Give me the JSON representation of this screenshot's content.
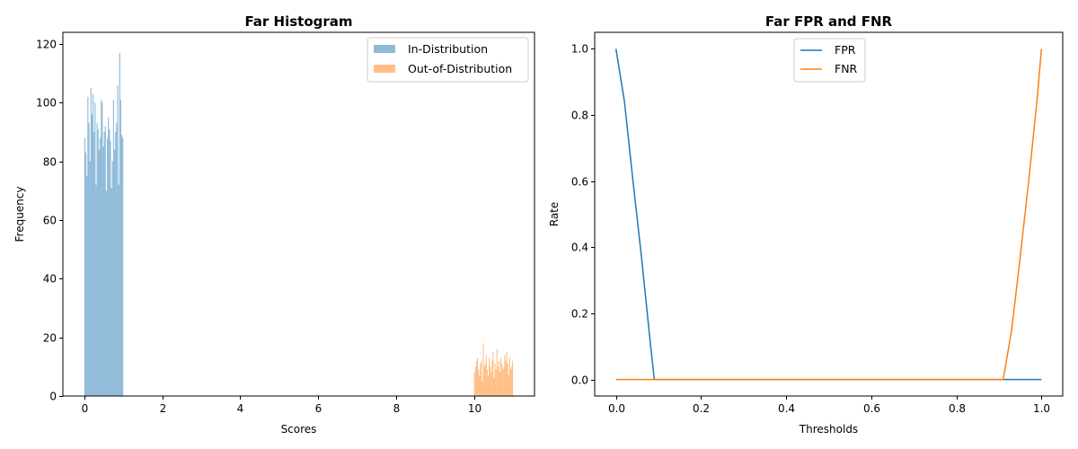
{
  "chart_data": [
    {
      "type": "histogram",
      "title": "Far Histogram",
      "xlabel": "Scores",
      "ylabel": "Frequency",
      "xlim": [
        -0.55,
        11.55
      ],
      "ylim": [
        0,
        124
      ],
      "xticks": [
        0,
        2,
        4,
        6,
        8,
        10
      ],
      "yticks": [
        0,
        20,
        40,
        60,
        80,
        100,
        120
      ],
      "legend": "upper-right",
      "series": [
        {
          "name": "In-Distribution",
          "color": "#1f77b4",
          "opacity": 0.5,
          "range": [
            0,
            1
          ],
          "values": [
            88,
            83,
            75,
            102,
            93,
            80,
            105,
            96,
            103,
            90,
            100,
            72,
            93,
            91,
            84,
            88,
            101,
            100,
            85,
            90,
            92,
            70,
            88,
            95,
            91,
            87,
            71,
            80,
            101,
            84,
            90,
            93,
            106,
            72,
            117,
            101,
            89,
            88
          ]
        },
        {
          "name": "Out-of-Distribution",
          "color": "#ff7f0e",
          "opacity": 0.5,
          "range": [
            10,
            11
          ],
          "values": [
            8,
            10,
            12,
            13,
            9,
            7,
            11,
            12,
            5,
            18,
            10,
            11,
            14,
            9,
            7,
            13,
            10,
            8,
            12,
            15,
            6,
            11,
            9,
            16,
            10,
            12,
            8,
            13,
            11,
            9,
            10,
            14,
            12,
            15,
            11,
            7,
            13,
            9,
            10,
            12
          ]
        }
      ]
    },
    {
      "type": "line",
      "title": "Far FPR and FNR",
      "xlabel": "Thresholds",
      "ylabel": "Rate",
      "xlim": [
        -0.05,
        1.05
      ],
      "ylim": [
        -0.05,
        1.05
      ],
      "xticks": [
        0.0,
        0.2,
        0.4,
        0.6,
        0.8,
        1.0
      ],
      "yticks": [
        0.0,
        0.2,
        0.4,
        0.6,
        0.8,
        1.0
      ],
      "legend": "upper-center",
      "series": [
        {
          "name": "FPR",
          "color": "#1f77b4",
          "x": [
            0.0,
            0.02,
            0.04,
            0.06,
            0.08,
            0.09,
            0.1,
            0.2,
            0.3,
            0.4,
            0.5,
            0.6,
            0.7,
            0.8,
            0.9,
            1.0
          ],
          "y": [
            1.0,
            0.84,
            0.6,
            0.37,
            0.12,
            0.0,
            0.0,
            0.0,
            0.0,
            0.0,
            0.0,
            0.0,
            0.0,
            0.0,
            0.0,
            0.0
          ]
        },
        {
          "name": "FNR",
          "color": "#ff7f0e",
          "x": [
            0.0,
            0.1,
            0.2,
            0.3,
            0.4,
            0.5,
            0.6,
            0.7,
            0.8,
            0.9,
            0.91,
            0.93,
            0.95,
            0.97,
            0.99,
            1.0
          ],
          "y": [
            0.0,
            0.0,
            0.0,
            0.0,
            0.0,
            0.0,
            0.0,
            0.0,
            0.0,
            0.0,
            0.0,
            0.15,
            0.37,
            0.6,
            0.85,
            1.0
          ]
        }
      ]
    }
  ]
}
